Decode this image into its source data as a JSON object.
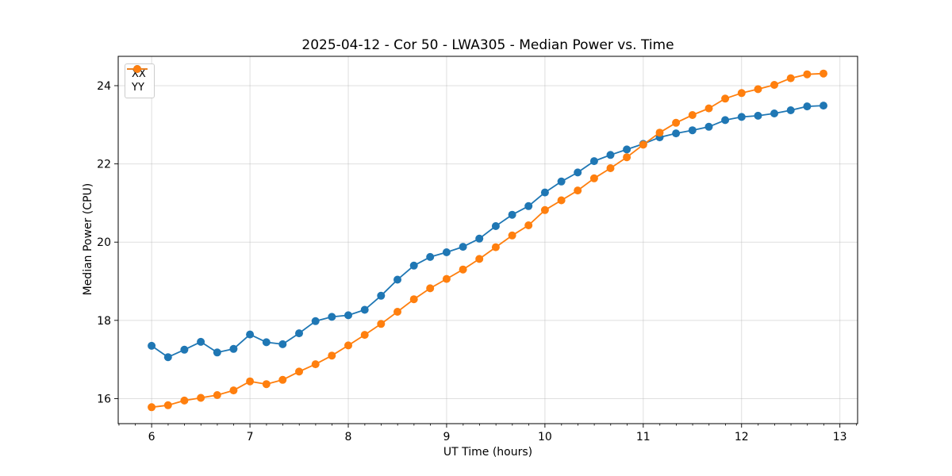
{
  "chart_data": {
    "type": "line",
    "title": "2025-04-12 - Cor 50 - LWA305 - Median Power vs. Time",
    "xlabel": "UT Time (hours)",
    "ylabel": "Median Power (CPU)",
    "xlim": [
      5.66,
      13.18
    ],
    "ylim": [
      15.36,
      24.75
    ],
    "x_ticks": [
      6,
      7,
      8,
      9,
      10,
      11,
      12,
      13
    ],
    "y_ticks": [
      16,
      18,
      20,
      22,
      24
    ],
    "x_minor_step": 0.1667,
    "grid": true,
    "grid_color": "rgba(176,176,176,0.4)",
    "legend_position": "upper-left",
    "x": [
      6.0,
      6.167,
      6.333,
      6.5,
      6.667,
      6.833,
      7.0,
      7.167,
      7.333,
      7.5,
      7.667,
      7.833,
      8.0,
      8.167,
      8.333,
      8.5,
      8.667,
      8.833,
      9.0,
      9.167,
      9.333,
      9.5,
      9.667,
      9.833,
      10.0,
      10.167,
      10.333,
      10.5,
      10.667,
      10.833,
      11.0,
      11.167,
      11.333,
      11.5,
      11.667,
      11.833,
      12.0,
      12.167,
      12.333,
      12.5,
      12.667,
      12.833
    ],
    "series": [
      {
        "name": "XX",
        "color": "#1f77b4",
        "values": [
          17.35,
          17.06,
          17.25,
          17.45,
          17.18,
          17.27,
          17.64,
          17.44,
          17.39,
          17.67,
          17.98,
          18.09,
          18.13,
          18.27,
          18.63,
          19.04,
          19.4,
          19.62,
          19.74,
          19.88,
          20.09,
          20.41,
          20.7,
          20.92,
          21.27,
          21.55,
          21.78,
          22.07,
          22.23,
          22.37,
          22.51,
          22.68,
          22.78,
          22.86,
          22.95,
          23.12,
          23.2,
          23.23,
          23.29,
          23.37,
          23.47,
          23.49
        ]
      },
      {
        "name": "YY",
        "color": "#ff7f0e",
        "values": [
          15.78,
          15.83,
          15.95,
          16.02,
          16.09,
          16.21,
          16.44,
          16.37,
          16.48,
          16.69,
          16.88,
          17.1,
          17.36,
          17.63,
          17.91,
          18.22,
          18.54,
          18.82,
          19.06,
          19.3,
          19.57,
          19.87,
          20.17,
          20.43,
          20.82,
          21.07,
          21.32,
          21.63,
          21.89,
          22.17,
          22.49,
          22.8,
          23.05,
          23.25,
          23.42,
          23.67,
          23.81,
          23.91,
          24.02,
          24.19,
          24.29,
          24.31
        ]
      }
    ]
  }
}
